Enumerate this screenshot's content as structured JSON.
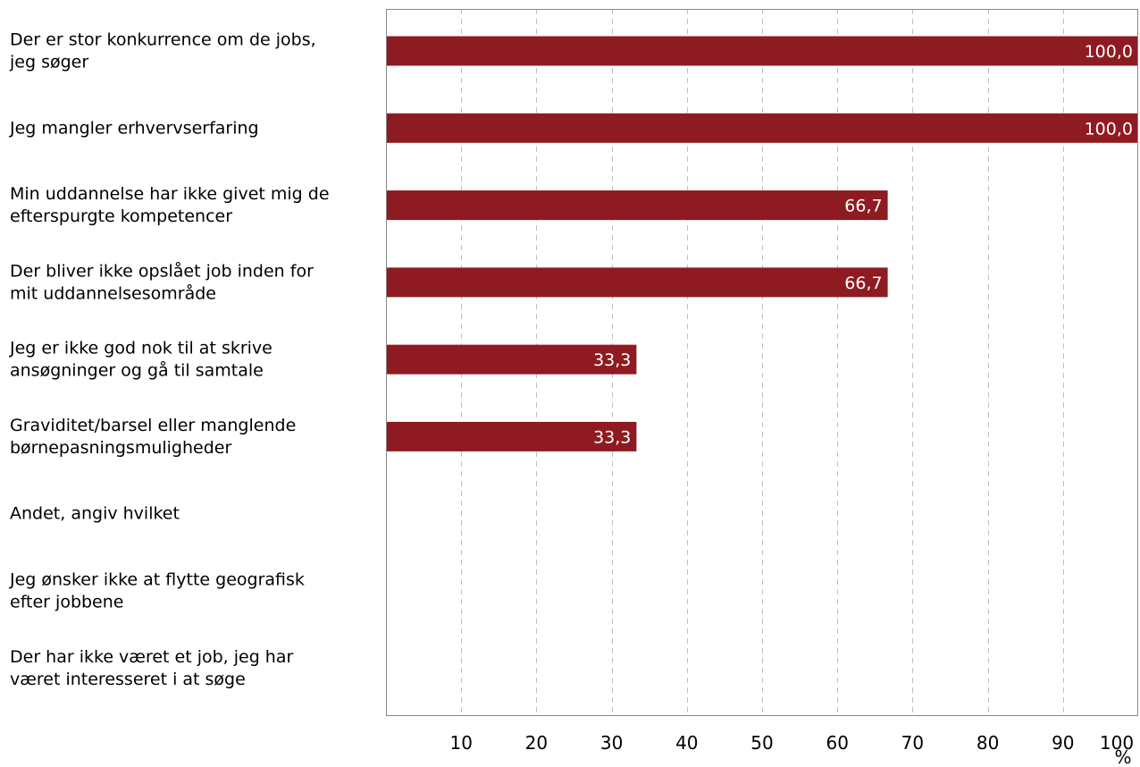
{
  "chart_data": {
    "type": "bar",
    "orientation": "horizontal",
    "categories": [
      [
        "Der er stor konkurrence om de jobs,",
        "jeg søger"
      ],
      [
        "Jeg mangler erhvervserfaring"
      ],
      [
        "Min uddannelse har ikke givet mig de",
        "efterspurgte kompetencer"
      ],
      [
        "Der bliver ikke opslået job inden for",
        "mit uddannelsesområde"
      ],
      [
        "Jeg er ikke god nok til at skrive",
        "ansøgninger og gå til samtale"
      ],
      [
        "Graviditet/barsel eller manglende",
        "børnepasningsmuligheder"
      ],
      [
        "Andet, angiv hvilket"
      ],
      [
        "Jeg ønsker ikke at flytte geografisk",
        "efter jobbene"
      ],
      [
        "Der har ikke været et job, jeg har",
        "været interesseret i at søge"
      ]
    ],
    "values": [
      100.0,
      100.0,
      66.7,
      66.7,
      33.3,
      33.3,
      null,
      null,
      null
    ],
    "data_labels": [
      "100,0",
      "100,0",
      "66,7",
      "66,7",
      "33,3",
      "33,3",
      "",
      "",
      ""
    ],
    "xlim": [
      0,
      100
    ],
    "xticks": [
      10,
      20,
      30,
      40,
      50,
      60,
      70,
      80,
      90,
      100
    ],
    "xtick_labels": [
      "10",
      "20",
      "30",
      "40",
      "50",
      "60",
      "70",
      "80",
      "90",
      "100"
    ],
    "x_unit": "%",
    "grid": "vertical dashed",
    "bar_color": "#8e1b21",
    "grid_color": "#c0c0c0",
    "axis_color": "#888888"
  }
}
